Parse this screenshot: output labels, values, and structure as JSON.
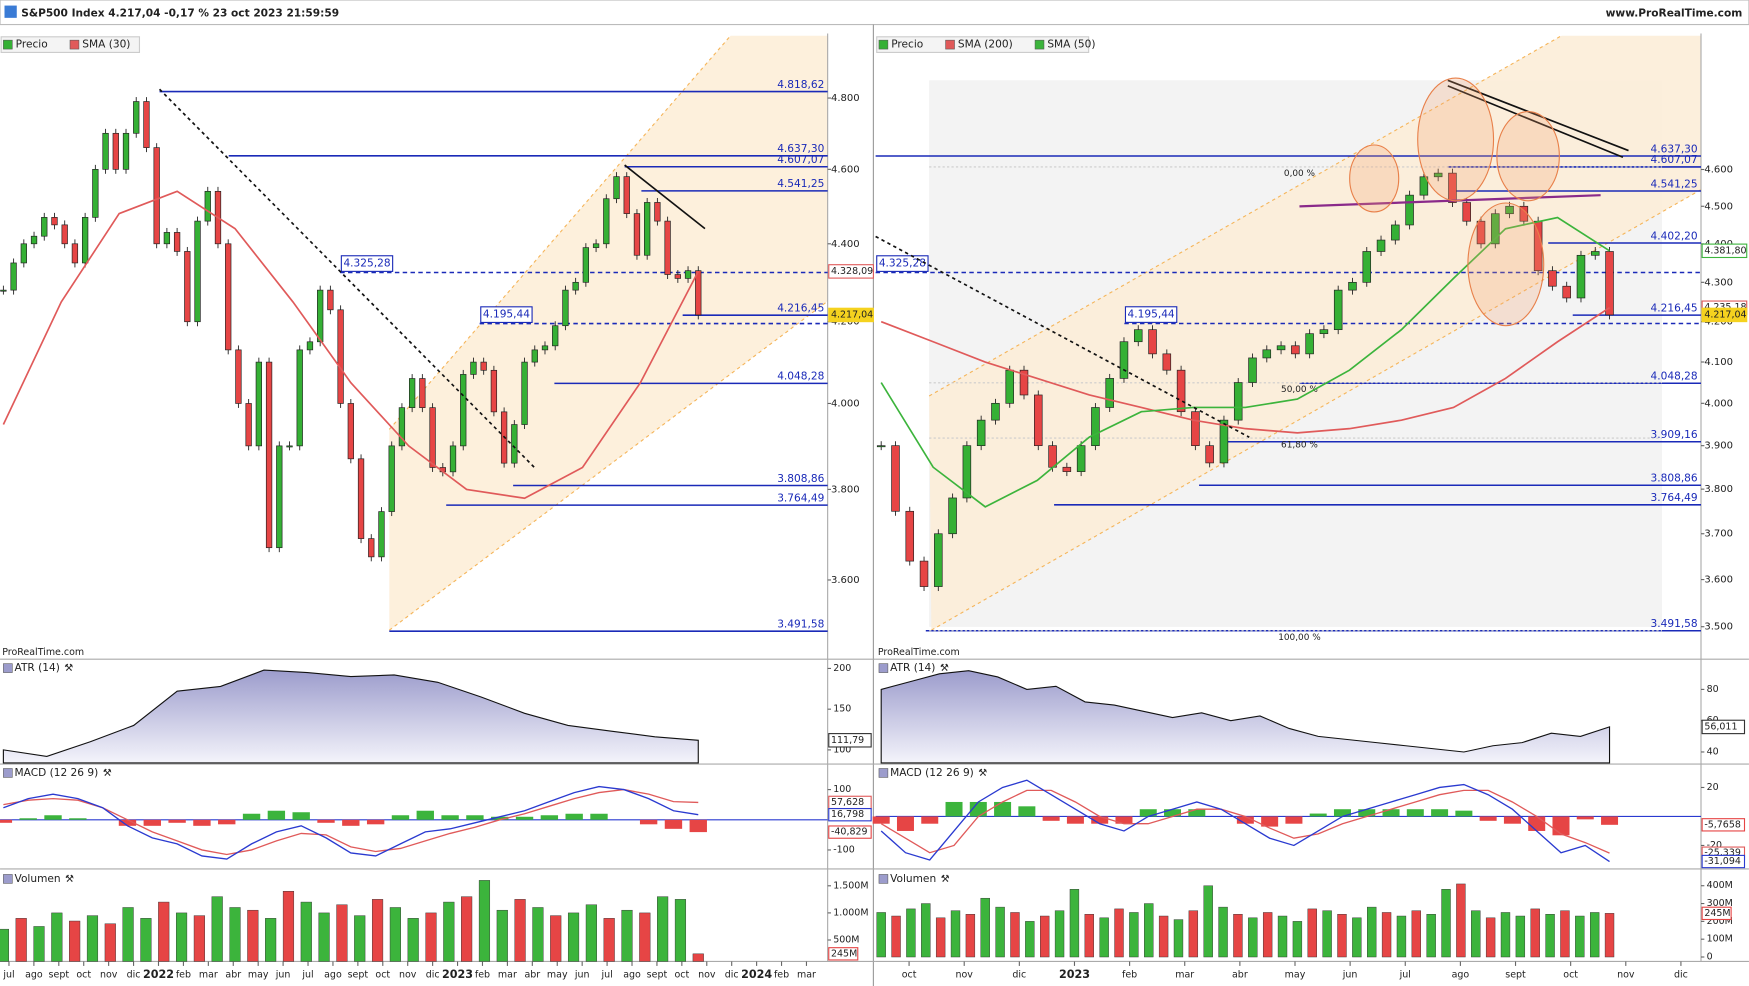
{
  "header": {
    "title": "S&P500 Index 4.217,04 -0,17 % 23 oct 2023 21:59:59",
    "site": "www.ProRealTime.com"
  },
  "panels": {
    "left": {
      "watermark": "ProRealTime.com",
      "months": [
        "jul",
        "ago",
        "sept",
        "oct",
        "nov",
        "dic",
        "2022",
        "feb",
        "mar",
        "abr",
        "may",
        "jun",
        "jul",
        "ago",
        "sept",
        "oct",
        "nov",
        "dic",
        "2023",
        "feb",
        "mar",
        "abr",
        "may",
        "jun",
        "jul",
        "ago",
        "sept",
        "oct",
        "nov",
        "dic",
        "2024",
        "feb",
        "mar"
      ],
      "price": {
        "log_scale": true,
        "ylim": [
          3436,
          4982
        ],
        "yticks": [
          {
            "value": 4800,
            "label": "4.800"
          },
          {
            "value": 4600,
            "label": "4.600"
          },
          {
            "value": 4400,
            "label": "4.400"
          },
          {
            "value": 4200,
            "label": "4.200"
          },
          {
            "value": 4000,
            "label": "4.000"
          },
          {
            "value": 3800,
            "label": "3.800"
          },
          {
            "value": 3600,
            "label": "3.600"
          }
        ],
        "series": [
          {
            "name": "Precio",
            "color": "#35b035",
            "down_color": "#e64545",
            "values": [
              4280,
              4350,
              4400,
              4420,
              4470,
              4450,
              4400,
              4350,
              4470,
              4600,
              4700,
              4600,
              4700,
              4790,
              4660,
              4400,
              4430,
              4380,
              4200,
              4460,
              4540,
              4400,
              4130,
              4000,
              3900,
              4100,
              3670,
              3900,
              3900,
              4130,
              4150,
              4280,
              4230,
              4000,
              3870,
              3690,
              3650,
              3750,
              3900,
              3990,
              4060,
              3990,
              3850,
              3840,
              3900,
              4070,
              4100,
              4080,
              3980,
              3860,
              3950,
              4100,
              4130,
              4140,
              4190,
              4280,
              4300,
              4390,
              4400,
              4520,
              4580,
              4480,
              4370,
              4510,
              4460,
              4320,
              4310,
              4330,
              4217.04
            ]
          },
          {
            "name": "SMA (30)",
            "color": "#e05a5a",
            "values": [
              3950,
              4250,
              4480,
              4540,
              4440,
              4250,
              4050,
              3900,
              3800,
              3780,
              3850,
              4050,
              4328.09
            ]
          }
        ],
        "levels": [
          {
            "value": 4818.62,
            "label": "4.818,62"
          },
          {
            "value": 4637.3,
            "label": "4.637,30"
          },
          {
            "value": 4607.07,
            "label": "4.607,07"
          },
          {
            "value": 4541.25,
            "label": "4.541,25"
          },
          {
            "value": 4325.28,
            "label": "4.325,28",
            "dashed": true
          },
          {
            "value": 4216.45,
            "label": "4.216,45"
          },
          {
            "value": 4195.44,
            "label": "4.195,44",
            "dashed": true
          },
          {
            "value": 4048.28,
            "label": "4.048,28"
          },
          {
            "value": 3808.86,
            "label": "3.808,86"
          },
          {
            "value": 3764.49,
            "label": "3.764,49"
          },
          {
            "value": 3491.58,
            "label": "3.491,58"
          }
        ],
        "badges": [
          {
            "value": 4328.09,
            "label": "4.328,09",
            "color": "#e05a5a"
          },
          {
            "value": 4217.04,
            "label": "4.217,04",
            "color": "#f5d21f"
          }
        ]
      },
      "atr": {
        "title": "ATR (14)",
        "ylim": [
          84,
          210
        ],
        "yticks": [
          200,
          150,
          100
        ],
        "values": [
          100,
          92,
          110,
          130,
          172,
          178,
          198,
          195,
          190,
          192,
          183,
          165,
          145,
          130,
          123,
          116,
          111.79
        ],
        "last": {
          "value": 111.79,
          "label": "111,79"
        }
      },
      "macd": {
        "title": "MACD (12 26 9)",
        "ylim": [
          -159,
          181
        ],
        "yticks": [
          100,
          -100
        ],
        "macd": [
          40,
          70,
          85,
          70,
          40,
          -20,
          -60,
          -80,
          -120,
          -130,
          -80,
          -40,
          -20,
          -60,
          -110,
          -120,
          -80,
          -40,
          -30,
          -10,
          10,
          30,
          60,
          90,
          110,
          100,
          70,
          30,
          16.798
        ],
        "signal": [
          50,
          65,
          70,
          65,
          40,
          0,
          -40,
          -70,
          -100,
          -115,
          -100,
          -70,
          -45,
          -50,
          -90,
          -105,
          -95,
          -70,
          -45,
          -25,
          0,
          20,
          45,
          70,
          90,
          100,
          85,
          60,
          57.628
        ],
        "histogram": [
          -10,
          5,
          15,
          5,
          0,
          -20,
          -20,
          -10,
          -20,
          -15,
          20,
          30,
          25,
          -10,
          -20,
          -15,
          15,
          30,
          15,
          15,
          10,
          10,
          15,
          20,
          20,
          0,
          -15,
          -30,
          -40.829
        ],
        "labels": [
          {
            "value": 57.628,
            "label": "57,628",
            "color": "#e05a5a"
          },
          {
            "value": 16.798,
            "label": "16,798",
            "color": "#2a3ad0"
          },
          {
            "value": -40.829,
            "label": "-40,829",
            "color": "#e64545"
          }
        ]
      },
      "volume": {
        "title": "Volumen",
        "ylim": [
          104,
          1771
        ],
        "yticks": [
          {
            "value": 1500,
            "label": "1.500M"
          },
          {
            "value": 1000,
            "label": "1.000M"
          },
          {
            "value": 500,
            "label": "500M"
          }
        ],
        "values": [
          700,
          900,
          750,
          1000,
          850,
          950,
          800,
          1100,
          900,
          1200,
          1000,
          950,
          1300,
          1100,
          1050,
          900,
          1400,
          1200,
          1000,
          1150,
          950,
          1250,
          1100,
          900,
          1000,
          1200,
          1300,
          1600,
          1050,
          1250,
          1100,
          950,
          1000,
          1150,
          900,
          1050,
          1000,
          1300,
          1250,
          245
        ],
        "last": {
          "value": 245,
          "label": "245M"
        }
      }
    },
    "right": {
      "watermark": "ProRealTime.com",
      "months": [
        "oct",
        "nov",
        "dic",
        "2023",
        "feb",
        "mar",
        "abr",
        "may",
        "jun",
        "jul",
        "ago",
        "sept",
        "oct",
        "nov",
        "dic"
      ],
      "price": {
        "log_scale": true,
        "ylim": [
          3435,
          4983
        ],
        "yticks": [
          {
            "value": 4600,
            "label": "4.600"
          },
          {
            "value": 4500,
            "label": "4.500"
          },
          {
            "value": 4400,
            "label": "4.400"
          },
          {
            "value": 4300,
            "label": "4.300"
          },
          {
            "value": 4200,
            "label": "4.200"
          },
          {
            "value": 4100,
            "label": "4.100"
          },
          {
            "value": 4000,
            "label": "4.000"
          },
          {
            "value": 3900,
            "label": "3.900"
          },
          {
            "value": 3800,
            "label": "3.800"
          },
          {
            "value": 3700,
            "label": "3.700"
          },
          {
            "value": 3600,
            "label": "3.600"
          },
          {
            "value": 3500,
            "label": "3.500"
          }
        ],
        "series": [
          {
            "name": "Precio",
            "color": "#35b035",
            "down_color": "#e64545",
            "values": [
              3900,
              3750,
              3640,
              3585,
              3700,
              3780,
              3900,
              3960,
              4000,
              4080,
              4020,
              3900,
              3850,
              3840,
              3900,
              3990,
              4060,
              4150,
              4180,
              4120,
              4080,
              3980,
              3900,
              3860,
              3960,
              4050,
              4110,
              4130,
              4140,
              4120,
              4170,
              4180,
              4280,
              4300,
              4380,
              4410,
              4450,
              4530,
              4580,
              4590,
              4510,
              4460,
              4400,
              4480,
              4500,
              4460,
              4330,
              4290,
              4260,
              4370,
              4380,
              4217.04
            ]
          },
          {
            "name": "SMA (200)",
            "color": "#e05a5a",
            "values": [
              4200,
              4150,
              4100,
              4060,
              4020,
              3990,
              3960,
              3940,
              3930,
              3940,
              3960,
              3990,
              4060,
              4150,
              4235.18
            ]
          },
          {
            "name": "SMA (50)",
            "color": "#3cb43c",
            "values": [
              4050,
              3850,
              3760,
              3820,
              3920,
              3980,
              3990,
              3990,
              4010,
              4080,
              4180,
              4310,
              4440,
              4470,
              4381.8
            ]
          }
        ],
        "levels": [
          {
            "value": 4637.3,
            "label": "4.637,30"
          },
          {
            "value": 4607.07,
            "label": "4.607,07"
          },
          {
            "value": 4541.25,
            "label": "4.541,25"
          },
          {
            "value": 4402.2,
            "label": "4.402,20"
          },
          {
            "value": 4325.28,
            "label": "4.325,28",
            "dashed": true
          },
          {
            "value": 4216.45,
            "label": "4.216,45"
          },
          {
            "value": 4195.44,
            "label": "4.195,44",
            "dashed": true
          },
          {
            "value": 4048.28,
            "label": "4.048,28"
          },
          {
            "value": 3909.16,
            "label": "3.909,16"
          },
          {
            "value": 3808.86,
            "label": "3.808,86"
          },
          {
            "value": 3764.49,
            "label": "3.764,49"
          },
          {
            "value": 3491.58,
            "label": "3.491,58"
          }
        ],
        "fibonacci": [
          {
            "value": 0,
            "label": "0,00 %"
          },
          {
            "value": 50,
            "label": "50,00 %"
          },
          {
            "value": 61.8,
            "label": "61,80 %"
          },
          {
            "value": 100,
            "label": "100,00 %"
          }
        ],
        "badges": [
          {
            "value": 4381.8,
            "label": "4.381,80",
            "color": "#3cb43c"
          },
          {
            "value": 4235.18,
            "label": "4.235,18",
            "color": "#e05a5a"
          },
          {
            "value": 4217.04,
            "label": "4.217,04",
            "color": "#f5d21f"
          }
        ]
      },
      "atr": {
        "title": "ATR (14)",
        "ylim": [
          33,
          98.6
        ],
        "yticks": [
          80,
          60,
          40
        ],
        "values": [
          80,
          85,
          90,
          92,
          88,
          80,
          82,
          72,
          70,
          66,
          62,
          65,
          60,
          63,
          55,
          50,
          48,
          46,
          44,
          42,
          40,
          44,
          46,
          52,
          50,
          56.011
        ],
        "last": {
          "value": 56.011,
          "label": "56,011"
        }
      },
      "macd": {
        "title": "MACD (12 26 9)",
        "ylim": [
          -35.4,
          35.4
        ],
        "yticks": [
          20,
          -20
        ],
        "macd": [
          -10,
          -25,
          -30,
          -10,
          10,
          20,
          25,
          15,
          5,
          -5,
          -10,
          0,
          5,
          10,
          5,
          -5,
          -15,
          -20,
          -10,
          0,
          5,
          10,
          15,
          20,
          22,
          15,
          5,
          -10,
          -25,
          -20,
          -31.094
        ],
        "signal": [
          -5,
          -15,
          -25,
          -20,
          0,
          10,
          18,
          18,
          10,
          0,
          -5,
          -5,
          0,
          5,
          5,
          0,
          -8,
          -15,
          -12,
          -5,
          0,
          5,
          10,
          15,
          18,
          18,
          10,
          0,
          -12,
          -18,
          -25.339
        ],
        "histogram": [
          -5,
          -10,
          -5,
          10,
          10,
          10,
          7,
          -3,
          -5,
          -5,
          -5,
          5,
          5,
          5,
          0,
          -5,
          -7,
          -5,
          2,
          5,
          5,
          5,
          5,
          5,
          4,
          -3,
          -5,
          -10,
          -13,
          -2,
          -5.7658
        ],
        "labels": [
          {
            "value": -5.7658,
            "label": "-5,7658",
            "color": "#e64545"
          },
          {
            "value": -25.339,
            "label": "-25,339",
            "color": "#e05a5a"
          },
          {
            "value": -31.094,
            "label": "-31,094",
            "color": "#2a3ad0"
          }
        ]
      },
      "volume": {
        "title": "Volumen",
        "ylim": [
          -25,
          482
        ],
        "yticks": [
          {
            "value": 400,
            "label": "400M"
          },
          {
            "value": 300,
            "label": "300M"
          },
          {
            "value": 200,
            "label": "200M"
          },
          {
            "value": 100,
            "label": "100M"
          },
          0
        ],
        "values": [
          250,
          230,
          270,
          300,
          220,
          260,
          240,
          330,
          280,
          250,
          200,
          230,
          260,
          380,
          240,
          220,
          270,
          250,
          300,
          230,
          210,
          260,
          400,
          280,
          240,
          220,
          250,
          230,
          200,
          270,
          260,
          240,
          220,
          280,
          250,
          230,
          260,
          240,
          380,
          410,
          260,
          220,
          250,
          230,
          270,
          240,
          260,
          230,
          250,
          245
        ],
        "last": {
          "value": 245,
          "label": "245M"
        }
      }
    }
  }
}
